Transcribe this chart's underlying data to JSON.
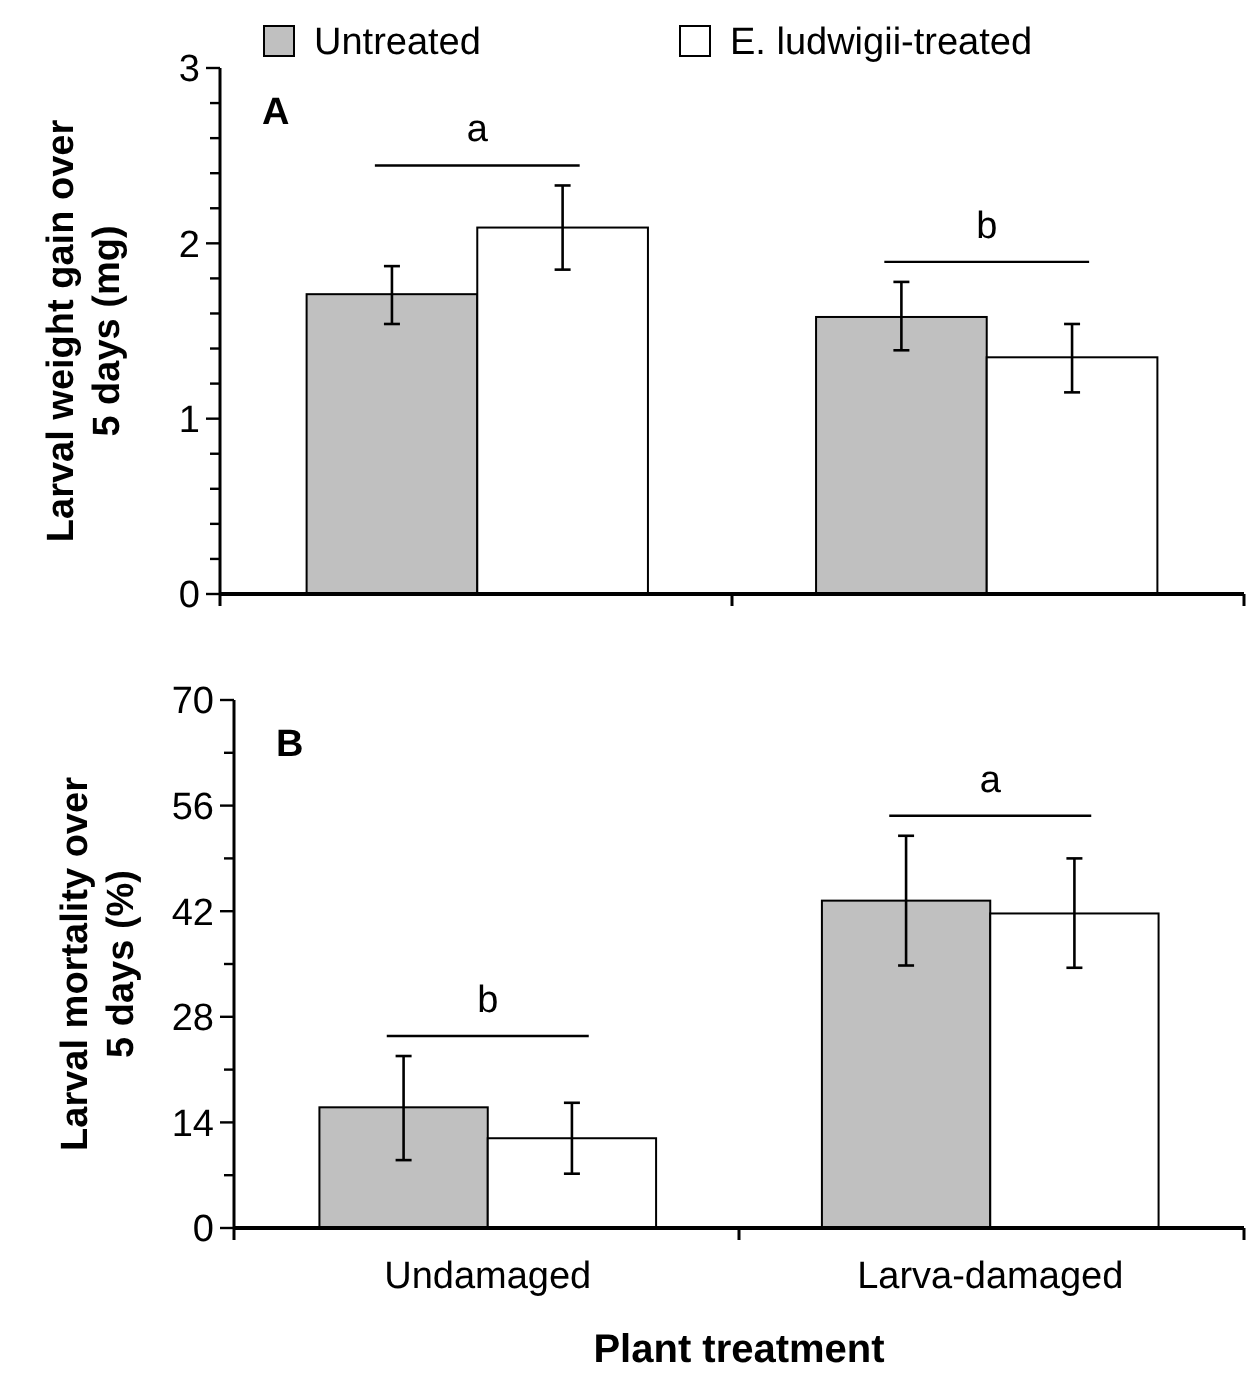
{
  "chart_data": [
    {
      "type": "bar",
      "ylabel": "Larval weight gain over\n5 days (mg)",
      "categories": [
        null,
        null
      ],
      "series": [
        {
          "name": "Untreated",
          "color": "#c0c0c0",
          "values": [
            1.71,
            1.58
          ],
          "errors": [
            [
              1.54,
              1.87
            ],
            [
              1.39,
              1.78
            ]
          ]
        },
        {
          "name": "E. ludwigii-treated",
          "color": "#ffffff",
          "values": [
            2.09,
            1.35
          ],
          "errors": [
            [
              1.85,
              2.33
            ],
            [
              1.15,
              1.54
            ]
          ]
        }
      ],
      "ylim": [
        0,
        3
      ],
      "yticks": [
        0,
        {
          "value": 0.2,
          "label": null
        },
        {
          "value": 0.4,
          "label": null
        },
        {
          "value": 0.6,
          "label": null
        },
        {
          "value": 0.8,
          "label": null
        },
        1,
        {
          "value": 1.2,
          "label": null
        },
        {
          "value": 1.4,
          "label": null
        },
        {
          "value": 1.6,
          "label": null
        },
        {
          "value": 1.8,
          "label": null
        },
        2,
        {
          "value": 2.2,
          "label": null
        },
        {
          "value": 2.4,
          "label": null
        },
        {
          "value": 2.6,
          "label": null
        },
        {
          "value": 2.8,
          "label": null
        },
        3
      ],
      "legend": "top",
      "grid": false,
      "annotations": [
        "A",
        "a",
        "b"
      ]
    },
    {
      "type": "bar",
      "xlabel": "Plant treatment",
      "ylabel": "Larval mortality over\n5 days  (%)",
      "categories": [
        "Undamaged",
        "Larva-damaged"
      ],
      "series": [
        {
          "color": "#c0c0c0",
          "values": [
            16.0,
            43.4
          ],
          "errors": [
            [
              9.0,
              22.8
            ],
            [
              34.8,
              52.0
            ]
          ]
        },
        {
          "color": "#ffffff",
          "values": [
            11.9,
            41.7
          ],
          "errors": [
            [
              7.2,
              16.6
            ],
            [
              34.5,
              49.0
            ]
          ]
        }
      ],
      "ylim": [
        0,
        70
      ],
      "yticks": [
        0,
        {
          "value": 7,
          "label": null
        },
        14,
        {
          "value": 21,
          "label": null
        },
        28,
        {
          "value": 35,
          "label": null
        },
        42,
        {
          "value": 49,
          "label": null
        },
        56,
        {
          "value": 63,
          "label": null
        },
        70
      ],
      "legend": false,
      "grid": false,
      "annotations": [
        "B",
        "b",
        "a"
      ]
    }
  ]
}
